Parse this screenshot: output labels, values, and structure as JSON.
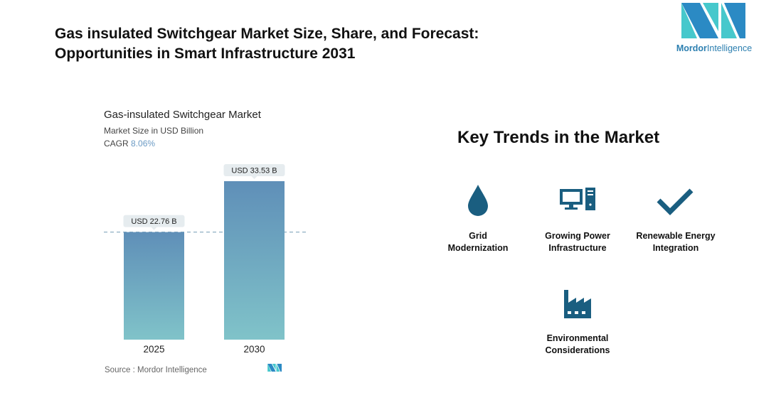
{
  "header": {
    "title_line1": "Gas insulated Switchgear Market Size, Share, and Forecast:",
    "title_line2": "Opportunities in Smart Infrastructure 2031"
  },
  "logo": {
    "brand_first": "Mordor",
    "brand_second": "Intelligence"
  },
  "chart_data": {
    "type": "bar",
    "title": "Gas-insulated Switchgear Market",
    "subtitle": "Market Size in USD Billion",
    "cagr_label": "CAGR",
    "cagr_value": "8.06%",
    "categories": [
      "2025",
      "2030"
    ],
    "values": [
      22.76,
      33.53
    ],
    "data_labels": [
      "USD 22.76 B",
      "USD 33.53 B"
    ],
    "ylim": [
      0,
      36
    ],
    "grid": false,
    "reference_line_value": 22.76,
    "colors": {
      "bar_top": "#5f8fb8",
      "bar_bottom": "#80c3c9",
      "label_bg": "#e6ecef",
      "dash": "#8fb0c4"
    },
    "source": "Source :  Mordor Intelligence"
  },
  "trends": {
    "title": "Key Trends in the Market",
    "icon_color": "#1a5e80",
    "items": [
      {
        "icon": "water-drop-icon",
        "line1": "Grid",
        "line2": "Modernization"
      },
      {
        "icon": "computer-icon",
        "line1": "Growing Power",
        "line2": "Infrastructure"
      },
      {
        "icon": "checkmark-icon",
        "line1": "Renewable Energy",
        "line2": "Integration"
      },
      {
        "icon": "factory-icon",
        "line1": "Environmental",
        "line2": "Considerations"
      }
    ]
  }
}
